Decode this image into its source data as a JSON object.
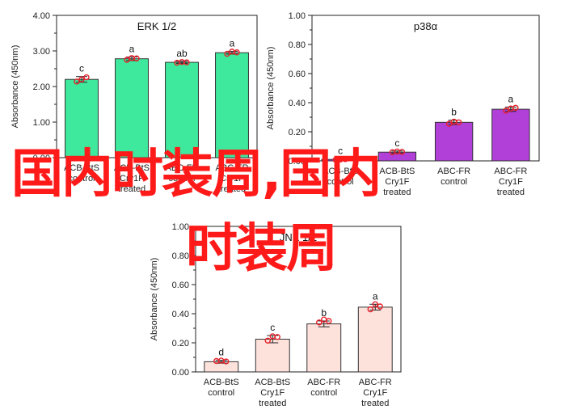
{
  "overlay": {
    "line1": "国内时装周,国内",
    "line2": "时装周",
    "color": "#ff1a1a"
  },
  "chart_data": [
    {
      "type": "bar",
      "title": "ERK 1/2",
      "ylabel": "Absorbance (450nm)",
      "ylim": [
        0,
        4
      ],
      "yticks": [
        "0.00",
        "1.00",
        "2.00",
        "3.00",
        "4.00"
      ],
      "categories": [
        [
          "ACB-BtS",
          "control"
        ],
        [
          "ACB-BtS",
          "Cry1F",
          "treated"
        ],
        [
          "ABC-FR",
          "control"
        ],
        [
          "ABC-FR",
          "Cry1F",
          "treated"
        ]
      ],
      "values": [
        2.2,
        2.78,
        2.68,
        2.95
      ],
      "errors": [
        0.08,
        0.05,
        0.03,
        0.04
      ],
      "points": [
        [
          2.14,
          2.2,
          2.26
        ],
        [
          2.75,
          2.8,
          2.79
        ],
        [
          2.67,
          2.69,
          2.68
        ],
        [
          2.92,
          2.98,
          2.96
        ]
      ],
      "significance": [
        "c",
        "a",
        "ab",
        "a"
      ],
      "bar_color": "#3ee89c",
      "grid": false
    },
    {
      "type": "bar",
      "title": "p38α",
      "ylabel": "Absorbance (450nm)",
      "ylim": [
        0,
        1
      ],
      "yticks": [
        "0.00",
        "0.20",
        "0.40",
        "0.60",
        "0.80",
        "1.00"
      ],
      "categories": [
        [
          "ACB-BtS",
          "control"
        ],
        [
          "ACB-BtS",
          "Cry1F",
          "treated"
        ],
        [
          "ABC-FR",
          "control"
        ],
        [
          "ABC-FR",
          "Cry1F",
          "treated"
        ]
      ],
      "values": [
        0.01,
        0.06,
        0.265,
        0.355
      ],
      "errors": [
        0.005,
        0.008,
        0.015,
        0.015
      ],
      "points": [
        [
          0.008,
          0.01,
          0.012
        ],
        [
          0.06,
          0.065,
          0.062
        ],
        [
          0.255,
          0.27,
          0.265
        ],
        [
          0.345,
          0.36,
          0.365
        ]
      ],
      "significance": [
        "c",
        "c",
        "b",
        "a"
      ],
      "bar_color": "#b040d8",
      "grid": false
    },
    {
      "type": "bar",
      "title": "JNK 1/2",
      "ylabel": "Absorbance (450nm)",
      "ylim": [
        0,
        1
      ],
      "yticks": [
        "0.00",
        "0.20",
        "0.40",
        "0.60",
        "0.80",
        "1.00"
      ],
      "categories": [
        [
          "ACB-BtS",
          "control"
        ],
        [
          "ACB-BtS",
          "Cry1F",
          "treated"
        ],
        [
          "ABC-FR",
          "control"
        ],
        [
          "ABC-FR",
          "Cry1F",
          "treated"
        ]
      ],
      "values": [
        0.07,
        0.225,
        0.33,
        0.445
      ],
      "errors": [
        0.01,
        0.025,
        0.02,
        0.02
      ],
      "points": [
        [
          0.075,
          0.078,
          0.072
        ],
        [
          0.215,
          0.245,
          0.24
        ],
        [
          0.34,
          0.36,
          0.35
        ],
        [
          0.43,
          0.465,
          0.45
        ]
      ],
      "significance": [
        "d",
        "c",
        "b",
        "a"
      ],
      "bar_color": "#fde2dc",
      "grid": false
    }
  ]
}
